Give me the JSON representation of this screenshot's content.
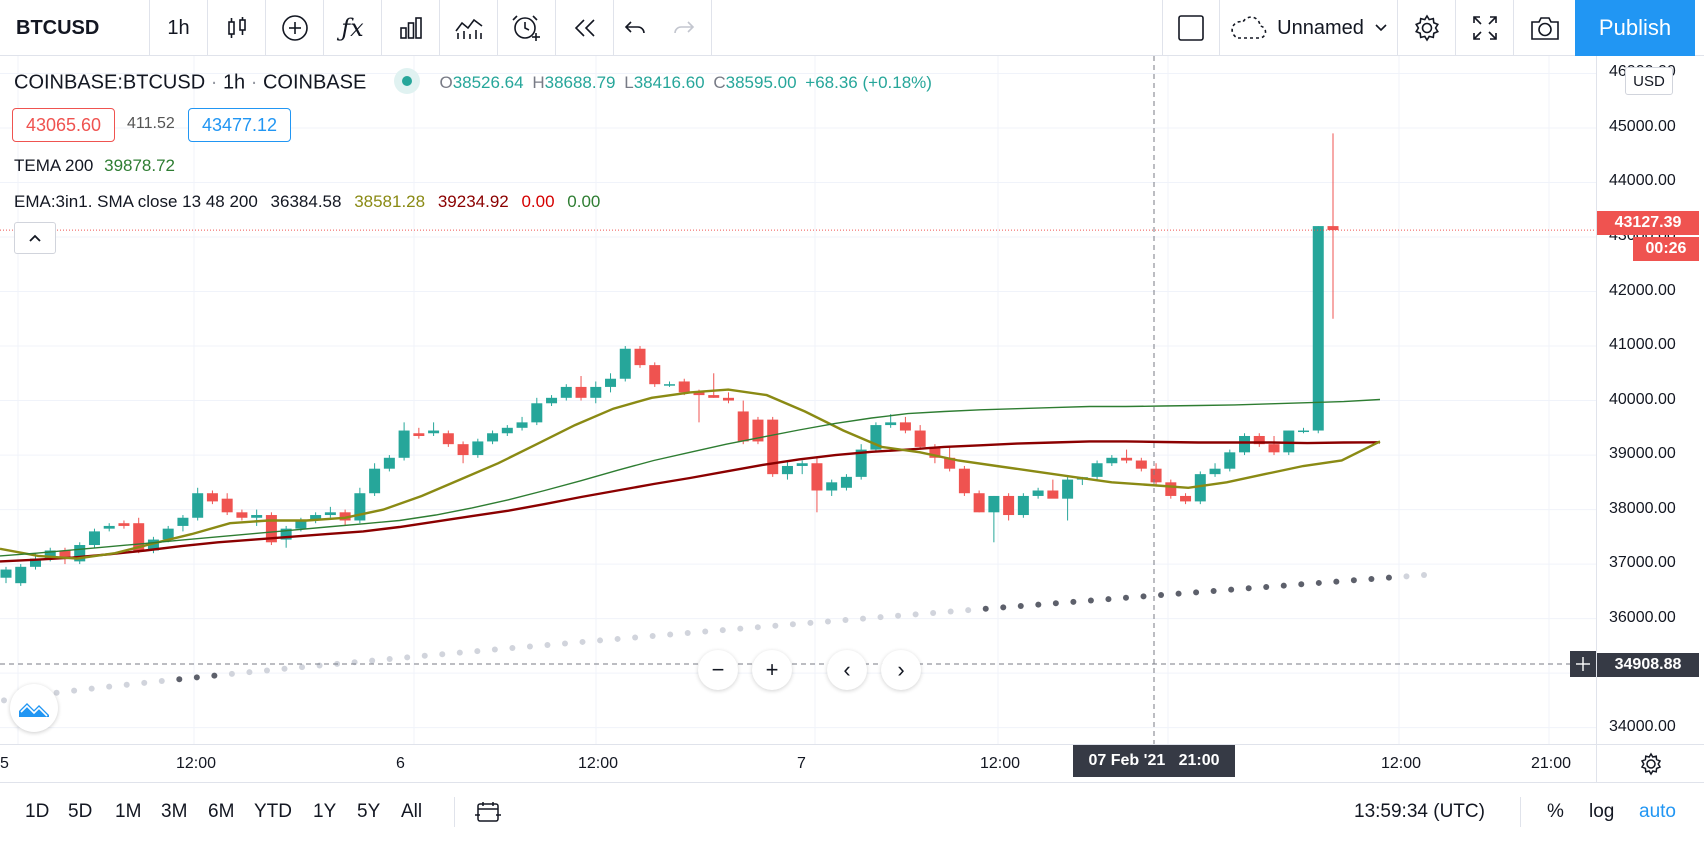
{
  "toolbar": {
    "symbol": "BTCUSD",
    "interval": "1h",
    "layout_name": "Unnamed",
    "publish_label": "Publish",
    "icons": [
      "candles-icon",
      "add-compare-icon",
      "indicators-fx-icon",
      "financials-icon",
      "templates-icon",
      "alert-icon",
      "replay-icon",
      "undo-icon",
      "redo-icon",
      "square-icon",
      "cloud-icon",
      "settings-icon",
      "fullscreen-icon",
      "camera-icon"
    ]
  },
  "legend": {
    "symbol_full": "COINBASE:BTCUSD",
    "interval": "1h",
    "exchange": "COINBASE",
    "o_label": "O",
    "o_value": "38526.64",
    "h_label": "H",
    "h_value": "38688.79",
    "l_label": "L",
    "l_value": "38416.60",
    "c_label": "C",
    "c_value": "38595.00",
    "change": "+68.36 (+0.18%)",
    "bid": "43065.60",
    "spread": "411.52",
    "ask": "43477.12",
    "tema_label": "TEMA 200",
    "tema_value": "39878.72",
    "ema_label": "EMA:3in1. SMA close 13 48 200",
    "ema_values": [
      "36384.58",
      "38581.28",
      "39234.92",
      "0.00",
      "0.00"
    ]
  },
  "price_axis": {
    "currency": "USD",
    "ticks": [
      "46000.00",
      "45000.00",
      "44000.00",
      "43000.00",
      "42000.00",
      "41000.00",
      "40000.00",
      "39000.00",
      "38000.00",
      "37000.00",
      "36000.00",
      "35000.00",
      "34000.00"
    ],
    "last_price": "43127.39",
    "countdown": "00:26",
    "crosshair_price": "34908.88"
  },
  "time_axis": {
    "ticks": [
      "5",
      "12:00",
      "6",
      "12:00",
      "7",
      "12:00",
      "12:00",
      "21:00"
    ],
    "crosshair_label": "07 Feb '21   21:00"
  },
  "bottom": {
    "ranges": [
      "1D",
      "5D",
      "1M",
      "3M",
      "6M",
      "YTD",
      "1Y",
      "5Y",
      "All"
    ],
    "clock": "13:59:34 (UTC)",
    "percent_label": "%",
    "log_label": "log",
    "auto_label": "auto"
  },
  "colors": {
    "up": "#26a69a",
    "down": "#ef5350",
    "ema_fast": "#2e7d32",
    "ema_mid": "#8a8a14",
    "ema_slow": "#8b0000",
    "accent": "#2196f3"
  },
  "chart_data": {
    "type": "candlestick",
    "symbol": "COINBASE:BTCUSD",
    "interval": "1h",
    "y_range": [
      33700,
      46100
    ],
    "candles": [
      {
        "o": 36750,
        "h": 36950,
        "l": 36650,
        "c": 36900
      },
      {
        "o": 36650,
        "h": 37000,
        "l": 36600,
        "c": 36950
      },
      {
        "o": 36950,
        "h": 37200,
        "l": 36900,
        "c": 37100
      },
      {
        "o": 37100,
        "h": 37300,
        "l": 37050,
        "c": 37250
      },
      {
        "o": 37250,
        "h": 37300,
        "l": 37000,
        "c": 37100
      },
      {
        "o": 37050,
        "h": 37400,
        "l": 37000,
        "c": 37350
      },
      {
        "o": 37350,
        "h": 37650,
        "l": 37300,
        "c": 37600
      },
      {
        "o": 37650,
        "h": 37750,
        "l": 37600,
        "c": 37700
      },
      {
        "o": 37750,
        "h": 37800,
        "l": 37650,
        "c": 37700
      },
      {
        "o": 37750,
        "h": 37850,
        "l": 37200,
        "c": 37250
      },
      {
        "o": 37250,
        "h": 37500,
        "l": 37200,
        "c": 37450
      },
      {
        "o": 37450,
        "h": 37700,
        "l": 37400,
        "c": 37650
      },
      {
        "o": 37700,
        "h": 37900,
        "l": 37600,
        "c": 37850
      },
      {
        "o": 37850,
        "h": 38400,
        "l": 37800,
        "c": 38300
      },
      {
        "o": 38300,
        "h": 38350,
        "l": 38100,
        "c": 38150
      },
      {
        "o": 38200,
        "h": 38300,
        "l": 37900,
        "c": 37950
      },
      {
        "o": 37950,
        "h": 38000,
        "l": 37800,
        "c": 37850
      },
      {
        "o": 37850,
        "h": 38000,
        "l": 37700,
        "c": 37900
      },
      {
        "o": 37900,
        "h": 37950,
        "l": 37350,
        "c": 37400
      },
      {
        "o": 37450,
        "h": 37700,
        "l": 37300,
        "c": 37650
      },
      {
        "o": 37650,
        "h": 37850,
        "l": 37600,
        "c": 37800
      },
      {
        "o": 37800,
        "h": 37950,
        "l": 37750,
        "c": 37900
      },
      {
        "o": 37900,
        "h": 38050,
        "l": 37850,
        "c": 37950
      },
      {
        "o": 37950,
        "h": 38000,
        "l": 37700,
        "c": 37800
      },
      {
        "o": 37800,
        "h": 38400,
        "l": 37750,
        "c": 38300
      },
      {
        "o": 38300,
        "h": 38850,
        "l": 38250,
        "c": 38750
      },
      {
        "o": 38750,
        "h": 39000,
        "l": 38700,
        "c": 38950
      },
      {
        "o": 38950,
        "h": 39600,
        "l": 38900,
        "c": 39450
      },
      {
        "o": 39400,
        "h": 39500,
        "l": 39300,
        "c": 39350
      },
      {
        "o": 39400,
        "h": 39600,
        "l": 39350,
        "c": 39450
      },
      {
        "o": 39400,
        "h": 39450,
        "l": 39150,
        "c": 39200
      },
      {
        "o": 39200,
        "h": 39250,
        "l": 38850,
        "c": 39000
      },
      {
        "o": 39000,
        "h": 39300,
        "l": 38950,
        "c": 39250
      },
      {
        "o": 39250,
        "h": 39450,
        "l": 39200,
        "c": 39400
      },
      {
        "o": 39400,
        "h": 39550,
        "l": 39350,
        "c": 39500
      },
      {
        "o": 39500,
        "h": 39700,
        "l": 39450,
        "c": 39600
      },
      {
        "o": 39600,
        "h": 40050,
        "l": 39550,
        "c": 39950
      },
      {
        "o": 39950,
        "h": 40100,
        "l": 39900,
        "c": 40050
      },
      {
        "o": 40050,
        "h": 40300,
        "l": 40000,
        "c": 40250
      },
      {
        "o": 40250,
        "h": 40450,
        "l": 40000,
        "c": 40050
      },
      {
        "o": 40050,
        "h": 40350,
        "l": 39950,
        "c": 40250
      },
      {
        "o": 40250,
        "h": 40500,
        "l": 40150,
        "c": 40400
      },
      {
        "o": 40400,
        "h": 41000,
        "l": 40350,
        "c": 40950
      },
      {
        "o": 40950,
        "h": 41000,
        "l": 40600,
        "c": 40650
      },
      {
        "o": 40650,
        "h": 40700,
        "l": 40250,
        "c": 40300
      },
      {
        "o": 40300,
        "h": 40350,
        "l": 40250,
        "c": 40300
      },
      {
        "o": 40350,
        "h": 40400,
        "l": 40100,
        "c": 40150
      },
      {
        "o": 40150,
        "h": 40200,
        "l": 39600,
        "c": 40100
      },
      {
        "o": 40100,
        "h": 40500,
        "l": 40050,
        "c": 40050
      },
      {
        "o": 40050,
        "h": 40150,
        "l": 39950,
        "c": 40000
      },
      {
        "o": 39800,
        "h": 40000,
        "l": 39200,
        "c": 39250
      },
      {
        "o": 39650,
        "h": 39700,
        "l": 39200,
        "c": 39250
      },
      {
        "o": 39650,
        "h": 39700,
        "l": 38600,
        "c": 38650
      },
      {
        "o": 38650,
        "h": 38900,
        "l": 38550,
        "c": 38800
      },
      {
        "o": 38800,
        "h": 38900,
        "l": 38650,
        "c": 38850
      },
      {
        "o": 38850,
        "h": 38950,
        "l": 37950,
        "c": 38350
      },
      {
        "o": 38350,
        "h": 38550,
        "l": 38250,
        "c": 38500
      },
      {
        "o": 38400,
        "h": 38650,
        "l": 38350,
        "c": 38600
      },
      {
        "o": 38600,
        "h": 39200,
        "l": 38550,
        "c": 39100
      },
      {
        "o": 39100,
        "h": 39600,
        "l": 39050,
        "c": 39550
      },
      {
        "o": 39550,
        "h": 39750,
        "l": 39500,
        "c": 39600
      },
      {
        "o": 39600,
        "h": 39700,
        "l": 39400,
        "c": 39450
      },
      {
        "o": 39450,
        "h": 39550,
        "l": 39100,
        "c": 39150
      },
      {
        "o": 39150,
        "h": 39200,
        "l": 38850,
        "c": 38950
      },
      {
        "o": 38950,
        "h": 39150,
        "l": 38700,
        "c": 38750
      },
      {
        "o": 38750,
        "h": 38800,
        "l": 38250,
        "c": 38300
      },
      {
        "o": 38300,
        "h": 38350,
        "l": 37950,
        "c": 37950
      },
      {
        "o": 37950,
        "h": 38250,
        "l": 37400,
        "c": 38250
      },
      {
        "o": 38250,
        "h": 38300,
        "l": 37800,
        "c": 37900
      },
      {
        "o": 37900,
        "h": 38300,
        "l": 37850,
        "c": 38250
      },
      {
        "o": 38250,
        "h": 38400,
        "l": 38200,
        "c": 38350
      },
      {
        "o": 38350,
        "h": 38550,
        "l": 38300,
        "c": 38200
      },
      {
        "o": 38200,
        "h": 38600,
        "l": 37800,
        "c": 38550
      },
      {
        "o": 38550,
        "h": 38600,
        "l": 38450,
        "c": 38595
      },
      {
        "o": 38600,
        "h": 38900,
        "l": 38550,
        "c": 38850
      },
      {
        "o": 38850,
        "h": 39000,
        "l": 38800,
        "c": 38950
      },
      {
        "o": 38950,
        "h": 39100,
        "l": 38850,
        "c": 38900
      },
      {
        "o": 38900,
        "h": 38950,
        "l": 38700,
        "c": 38750
      },
      {
        "o": 38750,
        "h": 38850,
        "l": 38450,
        "c": 38500
      },
      {
        "o": 38500,
        "h": 38550,
        "l": 38200,
        "c": 38250
      },
      {
        "o": 38250,
        "h": 38300,
        "l": 38100,
        "c": 38150
      },
      {
        "o": 38150,
        "h": 38700,
        "l": 38100,
        "c": 38650
      },
      {
        "o": 38650,
        "h": 38850,
        "l": 38600,
        "c": 38750
      },
      {
        "o": 38750,
        "h": 39100,
        "l": 38700,
        "c": 39050
      },
      {
        "o": 39050,
        "h": 39400,
        "l": 39000,
        "c": 39350
      },
      {
        "o": 39350,
        "h": 39400,
        "l": 39150,
        "c": 39200
      },
      {
        "o": 39200,
        "h": 39350,
        "l": 39000,
        "c": 39050
      },
      {
        "o": 39050,
        "h": 39450,
        "l": 39000,
        "c": 39450
      },
      {
        "o": 39450,
        "h": 39500,
        "l": 39400,
        "c": 39450
      },
      {
        "o": 39450,
        "h": 43200,
        "l": 39400,
        "c": 43200
      },
      {
        "o": 43200,
        "h": 44900,
        "l": 41500,
        "c": 43127
      }
    ],
    "ema_fast": [
      37150,
      37200,
      37260,
      37320,
      37380,
      37440,
      37500,
      37560,
      37620,
      37680,
      37740,
      37800,
      37900,
      38030,
      38180,
      38350,
      38530,
      38720,
      38900,
      39050,
      39200,
      39330,
      39460,
      39580,
      39680,
      39760,
      39800,
      39830,
      39850,
      39870,
      39890,
      39890,
      39900,
      39910,
      39920,
      39940,
      39960,
      39980,
      40020
    ],
    "ema_mid": [
      37280,
      37150,
      37100,
      37200,
      37380,
      37550,
      37750,
      37800,
      37800,
      37850,
      38000,
      38250,
      38550,
      38850,
      39200,
      39550,
      39850,
      40050,
      40150,
      40200,
      40100,
      39800,
      39450,
      39150,
      39050,
      38900,
      38800,
      38700,
      38600,
      38500,
      38450,
      38400,
      38500,
      38650,
      38800,
      38900,
      39250
    ],
    "ema_slow": [
      37050,
      37080,
      37120,
      37180,
      37250,
      37330,
      37400,
      37450,
      37500,
      37550,
      37600,
      37680,
      37780,
      37880,
      37980,
      38100,
      38230,
      38350,
      38470,
      38580,
      38700,
      38820,
      38920,
      39000,
      39060,
      39100,
      39150,
      39180,
      39210,
      39230,
      39250,
      39250,
      39240,
      39230,
      39230,
      39230,
      39220,
      39230,
      39234
    ],
    "sar_dots_start": 34500,
    "sar_dots_end": 36800
  }
}
